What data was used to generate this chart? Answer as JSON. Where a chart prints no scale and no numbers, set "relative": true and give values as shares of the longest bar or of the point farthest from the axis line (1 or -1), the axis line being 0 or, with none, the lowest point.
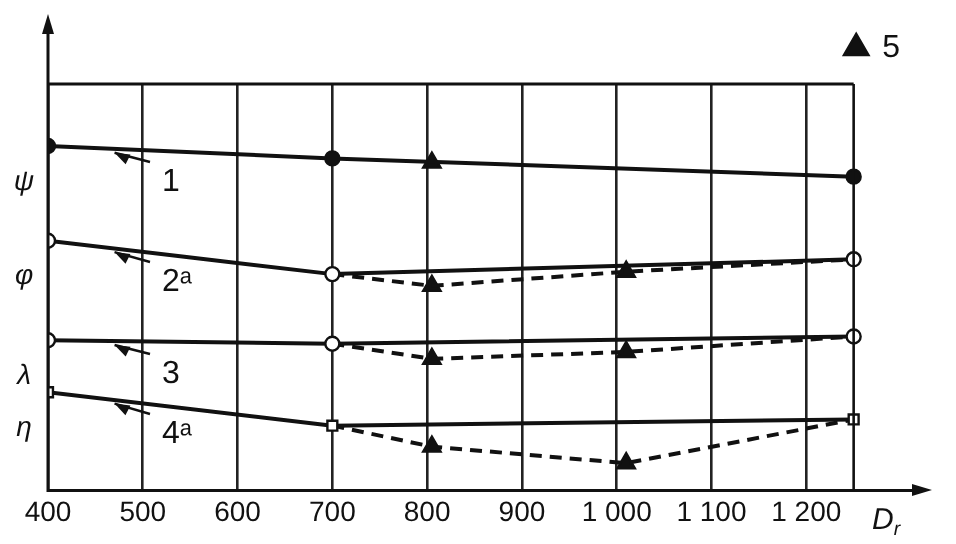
{
  "chart_data": {
    "type": "line",
    "relative": true,
    "xlabel": "D$_{r}$",
    "xlim": [
      400,
      1320
    ],
    "ref_lines": [
      {
        "axis": "x",
        "value": 1250
      }
    ],
    "xticks": [
      400,
      500,
      600,
      700,
      800,
      900,
      {
        "value": 1000,
        "label": "1 000"
      },
      {
        "value": 1100,
        "label": "1 100"
      },
      {
        "value": 1200,
        "label": "1 200"
      }
    ],
    "grid": "x",
    "legend": "top right",
    "line_style": "solid",
    "series": [
      {
        "color": "#111111",
        "marker": "circle",
        "x": [
          400,
          700,
          1250
        ],
        "values": [
          1.0,
          0.964,
          0.911
        ]
      },
      {
        "color": "#111111",
        "marker": "circle",
        "x": [
          400,
          700,
          1250
        ],
        "values": [
          0.725,
          0.628,
          0.671
        ]
      },
      {
        "color": "#111111",
        "marker": "circle",
        "x": [
          400,
          700,
          1250
        ],
        "values": [
          0.436,
          0.426,
          0.447
        ]
      },
      {
        "color": "#111111",
        "marker": "square",
        "x": [
          400,
          700,
          1250
        ],
        "values": [
          0.285,
          0.188,
          0.206
        ]
      },
      {
        "color": "#111111",
        "marker": "none",
        "line_style": "dashed",
        "x": [
          700,
          805,
          1010,
          1250
        ],
        "values": [
          0.628,
          0.594,
          0.635,
          0.671
        ]
      },
      {
        "color": "#111111",
        "marker": "none",
        "line_style": "dashed",
        "x": [
          700,
          805,
          1010,
          1250
        ],
        "values": [
          0.426,
          0.382,
          0.402,
          0.447
        ]
      },
      {
        "color": "#111111",
        "marker": "none",
        "line_style": "dashed",
        "x": [
          700,
          805,
          1010,
          1250
        ],
        "values": [
          0.188,
          0.127,
          0.079,
          0.206
        ]
      },
      {
        "name": "5",
        "type": "scatter",
        "color": "#111111",
        "marker": "triangle",
        "x": [
          805,
          805,
          1010,
          805,
          1010,
          805,
          1010
        ],
        "values": [
          0.952,
          0.594,
          0.635,
          0.382,
          0.402,
          0.127,
          0.079
        ]
      }
    ],
    "annotations": [
      "ψ",
      "φ",
      "λ",
      "η",
      "1",
      "2ᵃ",
      "3",
      "4ᵃ"
    ]
  }
}
